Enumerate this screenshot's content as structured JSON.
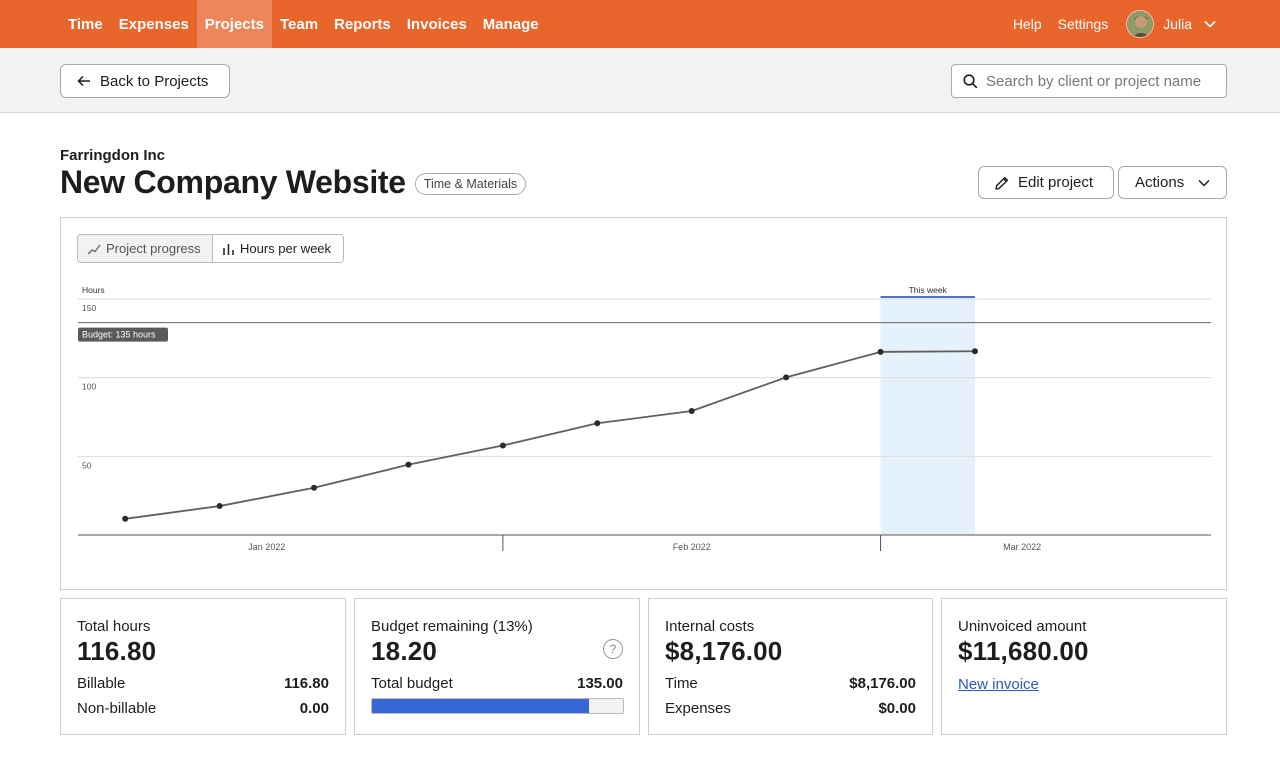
{
  "nav": {
    "items": [
      "Time",
      "Expenses",
      "Projects",
      "Team",
      "Reports",
      "Invoices",
      "Manage"
    ],
    "active": "Projects",
    "help": "Help",
    "settings": "Settings",
    "user": "Julia"
  },
  "subbar": {
    "back_label": "Back to Projects",
    "search_placeholder": "Search by client or project name"
  },
  "project": {
    "client": "Farringdon Inc",
    "title": "New Company Website",
    "type_badge": "Time & Materials",
    "edit_label": "Edit project",
    "actions_label": "Actions"
  },
  "chart_toggle": {
    "progress_label": "Project progress",
    "weekly_label": "Hours per week"
  },
  "chart_data": {
    "type": "line",
    "ylabel": "Hours",
    "ylim": [
      0,
      150
    ],
    "yticks": [
      50,
      100,
      150
    ],
    "x_range": [
      0,
      12
    ],
    "month_labels": [
      {
        "label": "Jan 2022",
        "x": 2
      },
      {
        "label": "Feb 2022",
        "x": 6.5
      },
      {
        "label": "Mar 2022",
        "x": 10
      }
    ],
    "week_separators": [
      4.5,
      8.5
    ],
    "budget": {
      "value": 135,
      "label": "Budget: 135 hours"
    },
    "this_week": {
      "start": 8.5,
      "end": 9.5,
      "label": "This week"
    },
    "points": [
      {
        "x": 0.5,
        "y": 10.3
      },
      {
        "x": 1.5,
        "y": 18.4
      },
      {
        "x": 2.5,
        "y": 30.0
      },
      {
        "x": 3.5,
        "y": 44.7
      },
      {
        "x": 4.5,
        "y": 56.9
      },
      {
        "x": 5.5,
        "y": 71.0
      },
      {
        "x": 6.5,
        "y": 78.8
      },
      {
        "x": 7.5,
        "y": 100.2
      },
      {
        "x": 8.5,
        "y": 116.4
      },
      {
        "x": 9.5,
        "y": 116.8
      }
    ]
  },
  "cards": {
    "total_hours": {
      "label": "Total hours",
      "value": "116.80",
      "rows": [
        {
          "label": "Billable",
          "value": "116.80"
        },
        {
          "label": "Non-billable",
          "value": "0.00"
        }
      ]
    },
    "budget": {
      "label": "Budget remaining (13%)",
      "value": "18.20",
      "help": "?",
      "total_label": "Total budget",
      "total_value": "135.00",
      "used_fraction": 0.865
    },
    "costs": {
      "label": "Internal costs",
      "value": "$8,176.00",
      "rows": [
        {
          "label": "Time",
          "value": "$8,176.00"
        },
        {
          "label": "Expenses",
          "value": "$0.00"
        }
      ]
    },
    "uninvoiced": {
      "label": "Uninvoiced amount",
      "value": "$11,680.00",
      "link": "New invoice"
    }
  },
  "colors": {
    "brand": "#e8652c",
    "bar": "#3767d6",
    "link": "#2a5bb8",
    "this_week_fill": "#e5f1fb",
    "this_week_line": "#4a74c9"
  }
}
